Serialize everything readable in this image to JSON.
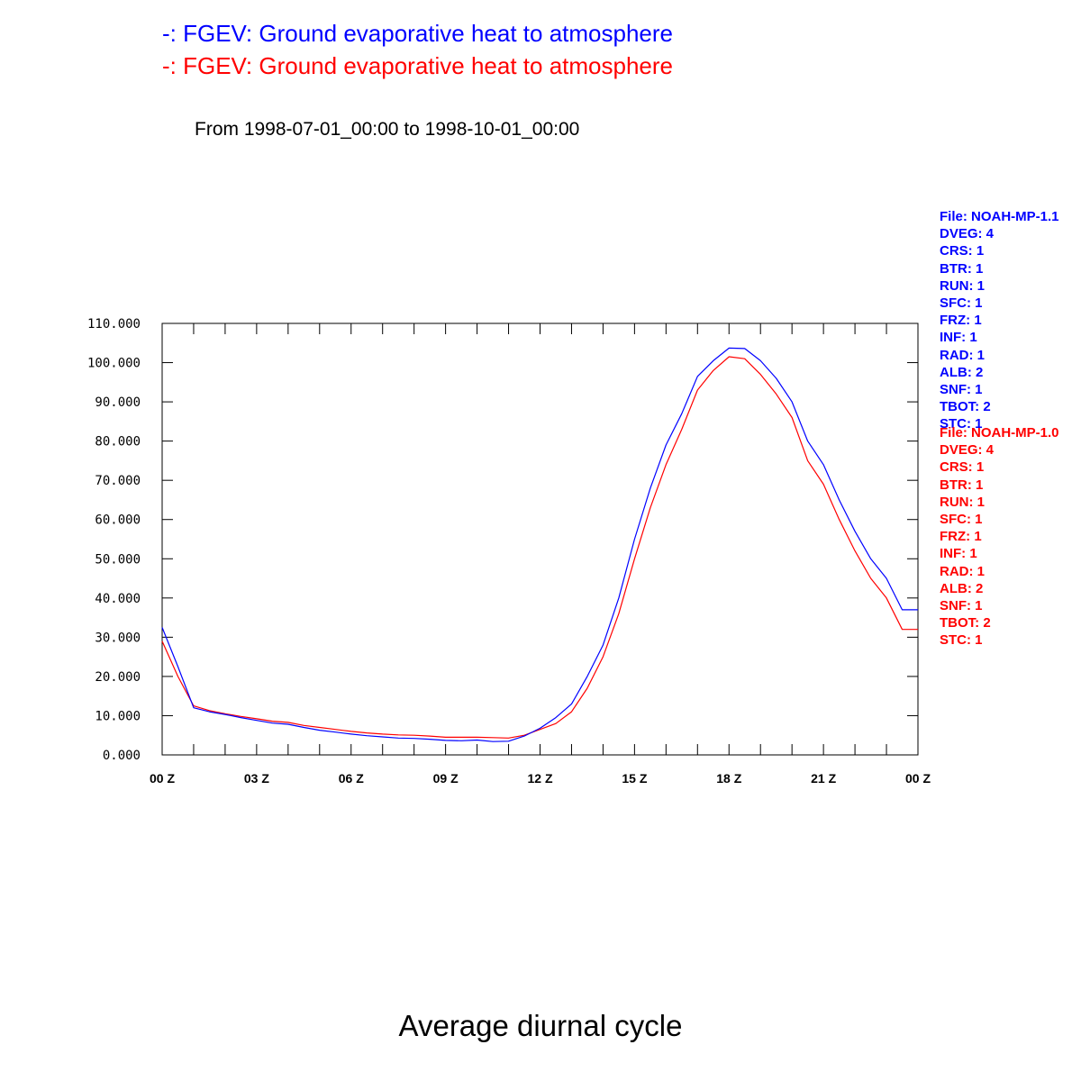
{
  "header": {
    "title_lines": [
      {
        "text": "-: FGEV: Ground evaporative heat to atmosphere",
        "color": "#0000ff"
      },
      {
        "text": "-: FGEV: Ground evaporative heat to atmosphere",
        "color": "#ff0000"
      }
    ],
    "date_range": "From 1998-07-01_00:00 to 1998-10-01_00:00"
  },
  "footer": {
    "title": "Average diurnal cycle"
  },
  "metadata": [
    {
      "color": "#0000ff",
      "lines": [
        "File: NOAH-MP-1.1",
        "DVEG: 4",
        "CRS: 1",
        "BTR: 1",
        "RUN: 1",
        "SFC: 1",
        "FRZ: 1",
        "INF: 1",
        "RAD: 1",
        "ALB: 2",
        "SNF: 1",
        "TBOT: 2",
        "STC: 1"
      ]
    },
    {
      "color": "#ff0000",
      "lines": [
        "File: NOAH-MP-1.0",
        "DVEG: 4",
        "CRS: 1",
        "BTR: 1",
        "RUN: 1",
        "SFC: 1",
        "FRZ: 1",
        "INF: 1",
        "RAD: 1",
        "ALB: 2",
        "SNF: 1",
        "TBOT: 2",
        "STC: 1"
      ]
    }
  ],
  "chart_data": {
    "type": "line",
    "title": "Average diurnal cycle",
    "xlabel": "",
    "ylabel": "",
    "x_unit": "hours UTC",
    "xlim": [
      0,
      24
    ],
    "ylim": [
      0,
      110
    ],
    "x_ticks": [
      0,
      3,
      6,
      9,
      12,
      15,
      18,
      21,
      24
    ],
    "x_tick_labels": [
      "00 Z",
      "03 Z",
      "06 Z",
      "09 Z",
      "12 Z",
      "15 Z",
      "18 Z",
      "21 Z",
      "00 Z"
    ],
    "y_ticks": [
      0,
      10,
      20,
      30,
      40,
      50,
      60,
      70,
      80,
      90,
      100,
      110
    ],
    "y_tick_labels": [
      "0.000",
      "10.000",
      "20.000",
      "30.000",
      "40.000",
      "50.000",
      "60.000",
      "70.000",
      "80.000",
      "90.000",
      "100.000",
      "110.000"
    ],
    "x": [
      0,
      0.5,
      1,
      1.5,
      2,
      2.5,
      3,
      3.5,
      4,
      4.5,
      5,
      5.5,
      6,
      6.5,
      7,
      7.5,
      8,
      8.5,
      9,
      9.5,
      10,
      10.5,
      11,
      11.5,
      12,
      12.5,
      13,
      13.5,
      14,
      14.5,
      15,
      15.5,
      16,
      16.5,
      17,
      17.5,
      18,
      18.5,
      19,
      19.5,
      20,
      20.5,
      21,
      21.5,
      22,
      22.5,
      23,
      23.5,
      24
    ],
    "series": [
      {
        "color": "#0000ff",
        "values": [
          32.5,
          22.5,
          12.0,
          11.0,
          10.3,
          9.5,
          8.8,
          8.1,
          7.8,
          7.0,
          6.3,
          5.8,
          5.3,
          4.9,
          4.6,
          4.3,
          4.2,
          4.0,
          3.7,
          3.6,
          3.8,
          3.4,
          3.5,
          4.8,
          6.8,
          9.5,
          13.0,
          20.0,
          28.0,
          40.0,
          55.0,
          68.0,
          79.0,
          87.0,
          96.5,
          100.5,
          103.7,
          103.6,
          100.5,
          96.0,
          90.0,
          80.0,
          74.0,
          65.0,
          57.0,
          50.0,
          45.0,
          37.0,
          37.0
        ]
      },
      {
        "color": "#ff0000",
        "values": [
          29.0,
          20.0,
          12.5,
          11.3,
          10.5,
          9.8,
          9.2,
          8.6,
          8.3,
          7.5,
          7.0,
          6.5,
          6.0,
          5.6,
          5.3,
          5.1,
          5.0,
          4.8,
          4.5,
          4.5,
          4.5,
          4.4,
          4.3,
          5.0,
          6.5,
          8.0,
          11.0,
          17.0,
          25.0,
          36.0,
          50.0,
          63.0,
          74.0,
          83.0,
          93.0,
          98.0,
          101.5,
          101.0,
          97.0,
          92.0,
          86.0,
          75.0,
          69.0,
          60.0,
          52.0,
          45.0,
          40.0,
          32.0,
          32.0
        ]
      }
    ]
  }
}
